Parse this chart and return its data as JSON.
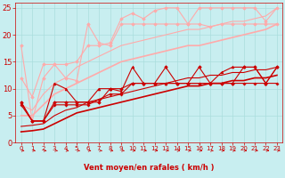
{
  "bg_color": "#c8eef0",
  "grid_color": "#aadddd",
  "line_color_dark": "#cc0000",
  "line_color_light": "#ffaaaa",
  "xlabel": "Vent moyen/en rafales ( km/h )",
  "xlabel_color": "#cc0000",
  "xlabel_fontsize": 6,
  "tick_color": "#cc0000",
  "tick_fontsize": 5,
  "ylim": [
    0,
    26
  ],
  "xlim": [
    -0.5,
    23.5
  ],
  "yticks": [
    0,
    5,
    10,
    15,
    20,
    25
  ],
  "xticks": [
    0,
    1,
    2,
    3,
    4,
    5,
    6,
    7,
    8,
    9,
    10,
    11,
    12,
    13,
    14,
    15,
    16,
    17,
    18,
    19,
    20,
    21,
    22,
    23
  ],
  "series": [
    {
      "x": [
        0,
        1,
        2,
        3,
        4,
        5,
        6,
        7,
        8,
        9,
        10,
        11,
        12,
        13,
        14,
        15,
        16,
        17,
        18,
        19,
        20,
        21,
        22,
        23
      ],
      "y": [
        7.5,
        4,
        4,
        7.5,
        7.5,
        7.5,
        7.5,
        7.5,
        10,
        10,
        11,
        11,
        11,
        14,
        11,
        11,
        14,
        11,
        11,
        11,
        14,
        14,
        11,
        14
      ],
      "color": "#cc0000",
      "lw": 0.8,
      "marker": "D",
      "ms": 1.8,
      "linestyle": "-",
      "zorder": 4
    },
    {
      "x": [
        0,
        1,
        2,
        3,
        4,
        5,
        6,
        7,
        8,
        9,
        10,
        11,
        12,
        13,
        14,
        15,
        16,
        17,
        18,
        19,
        20,
        21,
        22,
        23
      ],
      "y": [
        7,
        4,
        4,
        7,
        7,
        7,
        7,
        8,
        9,
        9,
        11,
        11,
        11,
        11,
        11,
        11,
        11,
        11,
        11,
        11,
        11,
        11,
        11,
        11
      ],
      "color": "#cc0000",
      "lw": 0.8,
      "marker": "P",
      "ms": 2.0,
      "linestyle": "-",
      "zorder": 4
    },
    {
      "x": [
        0,
        1,
        2,
        3,
        4,
        5,
        6,
        7,
        8,
        9,
        10,
        11,
        12,
        13,
        14,
        15,
        16,
        17,
        18,
        19,
        20,
        21,
        22,
        23
      ],
      "y": [
        7.5,
        4,
        4,
        11,
        10,
        7.5,
        7.5,
        10,
        10,
        9.5,
        14,
        11,
        11,
        11,
        11,
        11,
        11,
        11,
        13,
        14,
        14,
        14,
        11,
        14
      ],
      "color": "#cc0000",
      "lw": 0.8,
      "marker": "^",
      "ms": 2.0,
      "linestyle": "-",
      "zorder": 4
    },
    {
      "x": [
        0,
        1,
        2,
        3,
        4,
        5,
        6,
        7,
        8,
        9,
        10,
        11,
        12,
        13,
        14,
        15,
        16,
        17,
        18,
        19,
        20,
        21,
        22,
        23
      ],
      "y": [
        2.0,
        2.2,
        2.5,
        3.5,
        4.5,
        5.5,
        6.0,
        6.5,
        7.0,
        7.5,
        8.0,
        8.5,
        9.0,
        9.5,
        10.0,
        10.5,
        10.5,
        11.0,
        11.0,
        11.5,
        11.5,
        12.0,
        12.0,
        12.5
      ],
      "color": "#cc0000",
      "lw": 1.2,
      "marker": null,
      "ms": 0,
      "linestyle": "-",
      "zorder": 3
    },
    {
      "x": [
        0,
        1,
        2,
        3,
        4,
        5,
        6,
        7,
        8,
        9,
        10,
        11,
        12,
        13,
        14,
        15,
        16,
        17,
        18,
        19,
        20,
        21,
        22,
        23
      ],
      "y": [
        3.0,
        3.2,
        3.5,
        5.0,
        6.0,
        6.5,
        7.5,
        8.0,
        8.5,
        9.0,
        9.5,
        10.0,
        10.5,
        11.0,
        11.5,
        12.0,
        12.0,
        12.5,
        12.5,
        13.0,
        13.0,
        13.5,
        13.5,
        14.0
      ],
      "color": "#cc0000",
      "lw": 0.8,
      "marker": null,
      "ms": 0,
      "linestyle": "-",
      "zorder": 3
    },
    {
      "x": [
        0,
        1,
        2,
        3,
        4,
        5,
        6,
        7,
        8,
        9,
        10,
        11,
        12,
        13,
        14,
        15,
        16,
        17,
        18,
        19,
        20,
        21,
        22,
        23
      ],
      "y": [
        18,
        4,
        12,
        14.5,
        12,
        11.5,
        22,
        18.5,
        18,
        22,
        22,
        22,
        22,
        22,
        22,
        22,
        22,
        21.5,
        22,
        22,
        22,
        22,
        22,
        22
      ],
      "color": "#ffaaaa",
      "lw": 0.8,
      "marker": "D",
      "ms": 1.8,
      "linestyle": "-",
      "zorder": 2
    },
    {
      "x": [
        0,
        1,
        2,
        3,
        4,
        5,
        6,
        7,
        8,
        9,
        10,
        11,
        12,
        13,
        14,
        15,
        16,
        17,
        18,
        19,
        20,
        21,
        22,
        23
      ],
      "y": [
        12,
        8.5,
        14.5,
        14.5,
        14.5,
        15,
        18,
        18,
        18.5,
        23,
        24,
        23,
        24.5,
        25,
        25,
        22,
        25,
        25,
        25,
        25,
        25,
        25,
        22.5,
        25
      ],
      "color": "#ffaaaa",
      "lw": 0.8,
      "marker": "D",
      "ms": 1.8,
      "linestyle": "-",
      "zorder": 2
    },
    {
      "x": [
        0,
        1,
        2,
        3,
        4,
        5,
        6,
        7,
        8,
        9,
        10,
        11,
        12,
        13,
        14,
        15,
        16,
        17,
        18,
        19,
        20,
        21,
        22,
        23
      ],
      "y": [
        5,
        5,
        7,
        9,
        10,
        11,
        12,
        13,
        14,
        15,
        15.5,
        16,
        16.5,
        17,
        17.5,
        18,
        18,
        18.5,
        19,
        19.5,
        20,
        20.5,
        21,
        22
      ],
      "color": "#ffaaaa",
      "lw": 1.2,
      "marker": null,
      "ms": 0,
      "linestyle": "-",
      "zorder": 2
    },
    {
      "x": [
        0,
        1,
        2,
        3,
        4,
        5,
        6,
        7,
        8,
        9,
        10,
        11,
        12,
        13,
        14,
        15,
        16,
        17,
        18,
        19,
        20,
        21,
        22,
        23
      ],
      "y": [
        7,
        6,
        9,
        11,
        12,
        14,
        15,
        16,
        17,
        18,
        18.5,
        19,
        19.5,
        20,
        20.5,
        21,
        21,
        21.5,
        22,
        22.5,
        22.5,
        23,
        23.5,
        25
      ],
      "color": "#ffaaaa",
      "lw": 0.8,
      "marker": null,
      "ms": 0,
      "linestyle": "-",
      "zorder": 2
    }
  ]
}
